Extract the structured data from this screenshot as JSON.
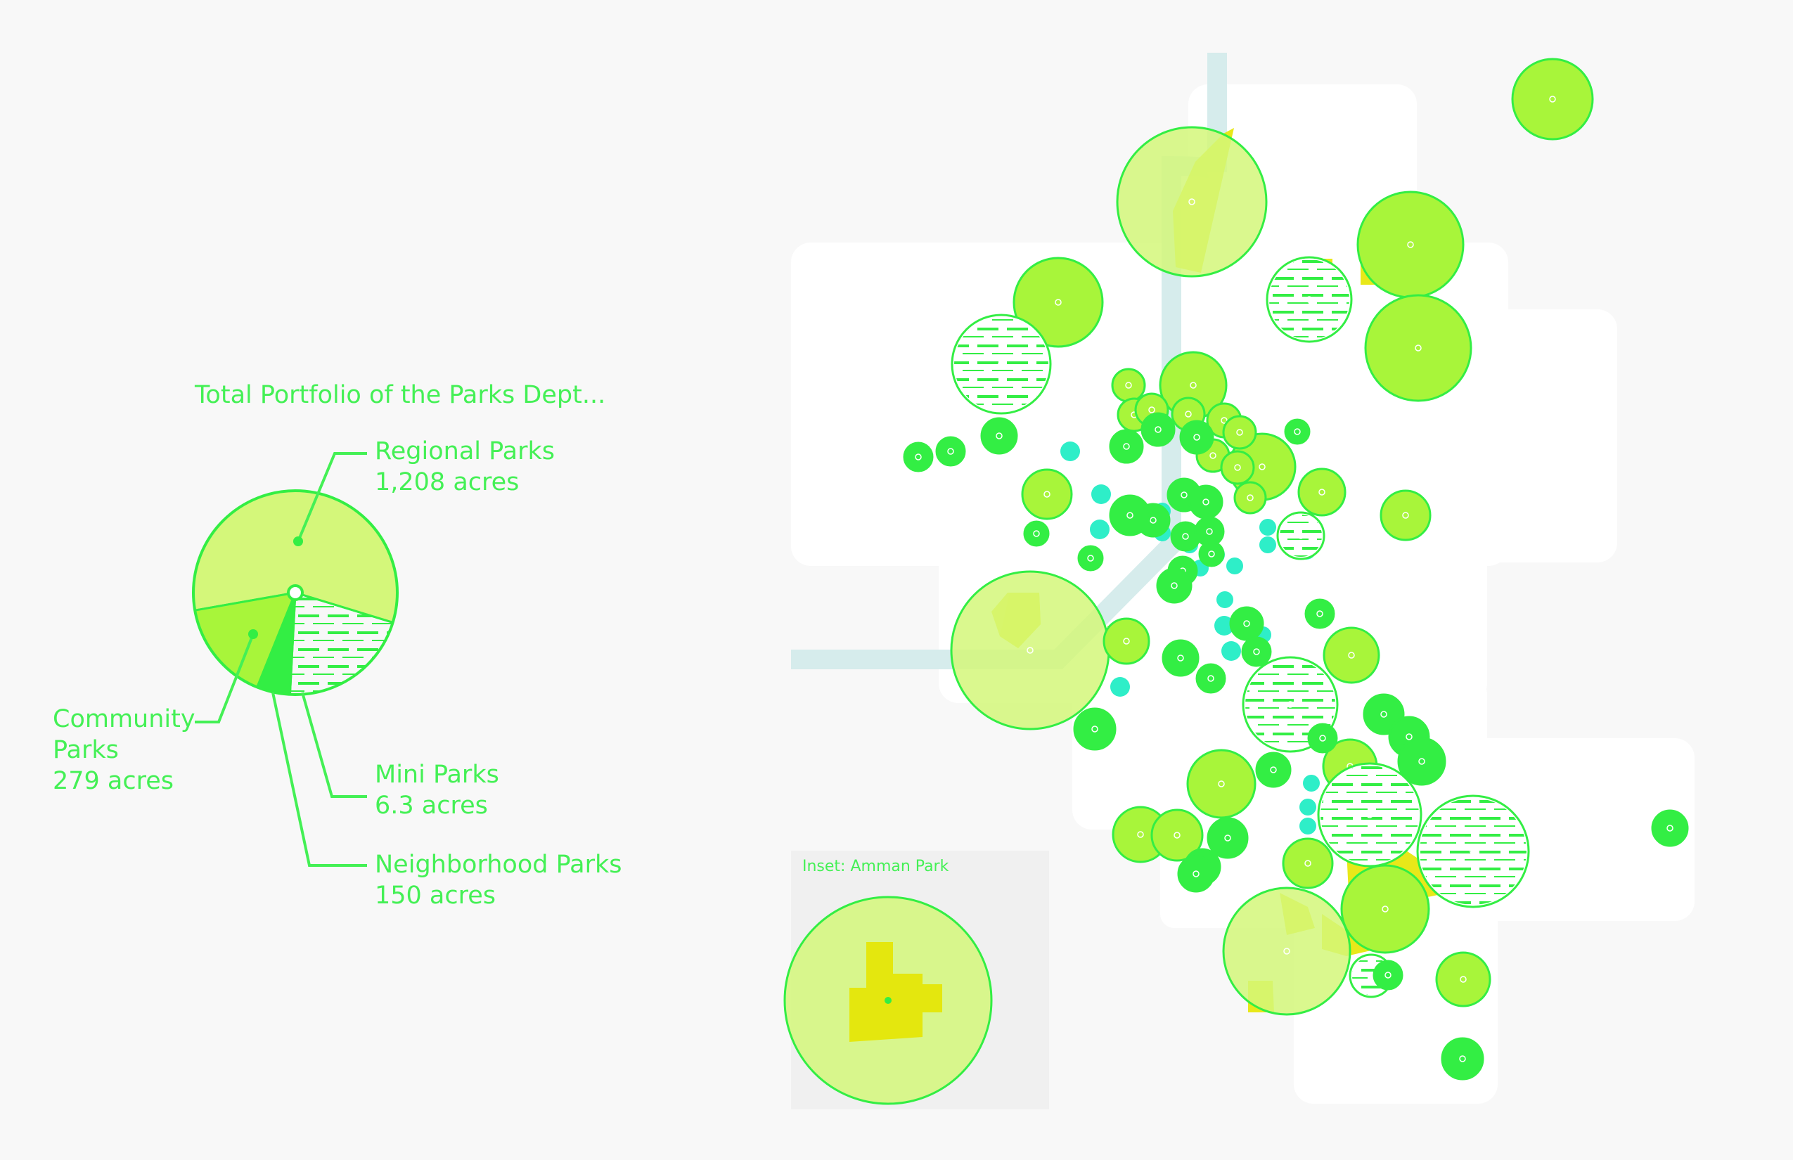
{
  "summary": {
    "title": "Total Portfolio of the Parks Dept...",
    "categories": [
      {
        "key": "regional",
        "name": "Regional Parks",
        "value_label": "1,208 acres",
        "acres": 1208
      },
      {
        "key": "community",
        "name_line1": "Community",
        "name_line2": "Parks",
        "value_label": "279 acres",
        "acres": 279
      },
      {
        "key": "mini",
        "name": "Mini Parks",
        "value_label": "6.3 acres",
        "acres": 6.3
      },
      {
        "key": "neighborhood",
        "name": "Neighborhood Parks",
        "value_label": "150 acres",
        "acres": 150
      }
    ]
  },
  "inset": {
    "title": "Inset: Amman Park"
  },
  "colors": {
    "background": "#f8f8f8",
    "city_area": "#ffffff",
    "label_green": "#44f055",
    "regional_fill": "#d4f77a",
    "community_fill": "#a8f53a",
    "mini_fill": "#33ee44",
    "neighborhood_hatch": "#33ee44",
    "park_parcel": "#e6e600",
    "corridor": "#d6ecec",
    "cyan_points": "#2eeec8",
    "inset_bg": "#f0f0f0"
  },
  "legend_symbols": {
    "regional": "light-lime-large-circle",
    "community": "lime-circle",
    "neighborhood": "hatched-circle",
    "mini": "bright-green-small-circle"
  }
}
